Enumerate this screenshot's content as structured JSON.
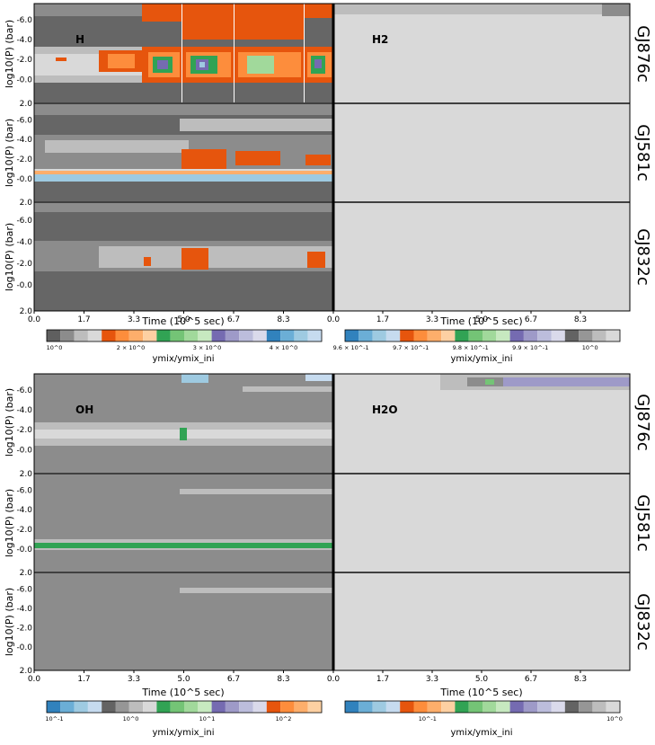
{
  "figure": {
    "shared": {
      "ylabel": "log10(P) (bar)",
      "xlabel": "Time (10^5 sec)",
      "xticks": [
        "0.0",
        "1.7",
        "3.3",
        "5.0",
        "6.7",
        "8.3"
      ],
      "yticks": [
        "-6.0",
        "-4.0",
        "-2.0",
        "-0.0",
        "2.0"
      ]
    },
    "rows": [
      "GJ876c",
      "GJ581c",
      "GJ832c"
    ]
  },
  "chart_data": [
    {
      "type": "heatmap",
      "title": "H",
      "planets": [
        "GJ876c",
        "GJ581c",
        "GJ832c"
      ],
      "x": [
        0.0,
        1.7,
        3.3,
        5.0,
        6.7,
        8.3
      ],
      "xlabel": "Time (10^5 sec)",
      "ylabel": "log10(P) (bar)",
      "ylim": [
        2.0,
        -7.8
      ],
      "colorbar": {
        "label": "ymix/ymix_ini",
        "scale": "linear",
        "range": [
          1.0,
          4.5
        ],
        "ticks": [
          "10^0",
          "2 × 10^0",
          "3 × 10^0",
          "4 × 10^0"
        ],
        "colors": [
          "#5f5f5f",
          "#8c8c8c",
          "#bdbdbd",
          "#d9d9d9",
          "#e6550d",
          "#fd8d3c",
          "#fdae6b",
          "#fdd0a2",
          "#31a354",
          "#74c476",
          "#a1d99b",
          "#c7e9c0",
          "#756bb1",
          "#9e9ac8",
          "#bcbddc",
          "#dadaeb",
          "#3182bd",
          "#6baed6",
          "#9ecae1",
          "#c6dbef"
        ]
      }
    },
    {
      "type": "heatmap",
      "title": "H2",
      "planets": [
        "GJ876c",
        "GJ581c",
        "GJ832c"
      ],
      "x": [
        0.0,
        1.7,
        3.3,
        5.0,
        6.7,
        8.3
      ],
      "xlabel": "Time (10^5 sec)",
      "colorbar": {
        "label": "ymix/ymix_ini",
        "scale": "linear",
        "range": [
          0.95,
          1.0
        ],
        "ticks": [
          "9.6 × 10^-1",
          "9.7 × 10^-1",
          "9.8 × 10^-1",
          "9.9 × 10^-1",
          "10^0"
        ],
        "colors": [
          "#3182bd",
          "#6baed6",
          "#9ecae1",
          "#c6dbef",
          "#e6550d",
          "#fd8d3c",
          "#fdae6b",
          "#fdd0a2",
          "#31a354",
          "#74c476",
          "#a1d99b",
          "#c7e9c0",
          "#756bb1",
          "#9e9ac8",
          "#bcbddc",
          "#dadaeb",
          "#636363",
          "#969696",
          "#bdbdbd",
          "#d9d9d9"
        ]
      }
    },
    {
      "type": "heatmap",
      "title": "OH",
      "planets": [
        "GJ876c",
        "GJ581c",
        "GJ832c"
      ],
      "x": [
        0.0,
        1.7,
        3.3,
        5.0,
        6.7,
        8.3
      ],
      "xlabel": "Time (10^5 sec)",
      "ylabel": "log10(P) (bar)",
      "colorbar": {
        "label": "ymix/ymix_ini",
        "scale": "log",
        "ticks": [
          "10^-1",
          "10^0",
          "10^1",
          "10^2"
        ],
        "colors": [
          "#3182bd",
          "#6baed6",
          "#9ecae1",
          "#c6dbef",
          "#636363",
          "#969696",
          "#bdbdbd",
          "#d9d9d9",
          "#31a354",
          "#74c476",
          "#a1d99b",
          "#c7e9c0",
          "#756bb1",
          "#9e9ac8",
          "#bcbddc",
          "#dadaeb",
          "#e6550d",
          "#fd8d3c",
          "#fdae6b",
          "#fdd0a2"
        ]
      }
    },
    {
      "type": "heatmap",
      "title": "H2O",
      "planets": [
        "GJ876c",
        "GJ581c",
        "GJ832c"
      ],
      "x": [
        0.0,
        1.7,
        3.3,
        5.0,
        6.7,
        8.3
      ],
      "xlabel": "Time (10^5 sec)",
      "colorbar": {
        "label": "ymix/ymix_ini",
        "scale": "log",
        "ticks": [
          "10^-1",
          "10^0"
        ],
        "colors": [
          "#3182bd",
          "#6baed6",
          "#9ecae1",
          "#c6dbef",
          "#e6550d",
          "#fd8d3c",
          "#fdae6b",
          "#fdd0a2",
          "#31a354",
          "#74c476",
          "#a1d99b",
          "#c7e9c0",
          "#756bb1",
          "#9e9ac8",
          "#bcbddc",
          "#dadaeb",
          "#636363",
          "#969696",
          "#bdbdbd",
          "#d9d9d9"
        ]
      }
    }
  ]
}
